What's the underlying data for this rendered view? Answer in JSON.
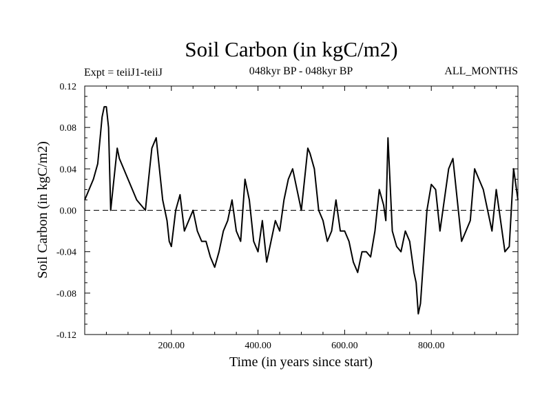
{
  "chart_data": {
    "type": "line",
    "title": "Soil Carbon (in kgC/m2)",
    "subtitle_left": "Expt = teiiJ1-teiiJ",
    "subtitle_center": "048kyr BP - 048kyr BP",
    "subtitle_right": "ALL_MONTHS",
    "xlabel": "Time (in years since start)",
    "ylabel": "Soil Carbon (in kgC/m2)",
    "xlim": [
      0,
      1000
    ],
    "ylim": [
      -0.12,
      0.12
    ],
    "xticks": [
      200,
      400,
      600,
      800
    ],
    "xtick_labels": [
      "200.00",
      "400.00",
      "600.00",
      "800.00"
    ],
    "yticks": [
      0.12,
      0.08,
      0.04,
      0.0,
      -0.04,
      -0.08,
      -0.12
    ],
    "ytick_labels": [
      "0.12",
      "0.08",
      "0.04",
      "0.00",
      "-0.04",
      "-0.08",
      "-0.12"
    ],
    "zero_line": "dashed",
    "grid": false,
    "series": [
      {
        "x": [
          0,
          10,
          20,
          30,
          40,
          45,
          50,
          55,
          60,
          70,
          75,
          80,
          90,
          100,
          110,
          120,
          130,
          140,
          150,
          155,
          160,
          165,
          170,
          180,
          190,
          195,
          200,
          210,
          220,
          230,
          240,
          250,
          260,
          270,
          280,
          290,
          300,
          310,
          320,
          330,
          340,
          350,
          360,
          370,
          380,
          390,
          400,
          410,
          420,
          430,
          440,
          450,
          460,
          470,
          480,
          490,
          500,
          510,
          515,
          520,
          530,
          540,
          550,
          560,
          570,
          580,
          590,
          600,
          610,
          620,
          630,
          640,
          650,
          660,
          670,
          680,
          690,
          695,
          700,
          710,
          720,
          730,
          740,
          750,
          760,
          765,
          770,
          775,
          780,
          790,
          800,
          810,
          820,
          830,
          840,
          850,
          860,
          870,
          880,
          890,
          900,
          910,
          920,
          930,
          940,
          950,
          960,
          970,
          980,
          990,
          1000
        ],
        "y": [
          0.01,
          0.02,
          0.03,
          0.045,
          0.09,
          0.1,
          0.1,
          0.08,
          0.0,
          0.04,
          0.06,
          0.05,
          0.04,
          0.03,
          0.02,
          0.01,
          0.005,
          0.0,
          0.04,
          0.06,
          0.065,
          0.07,
          0.05,
          0.01,
          -0.01,
          -0.03,
          -0.035,
          0.0,
          0.015,
          -0.02,
          -0.01,
          0.0,
          -0.02,
          -0.03,
          -0.03,
          -0.045,
          -0.055,
          -0.04,
          -0.02,
          -0.01,
          0.01,
          -0.02,
          -0.03,
          0.03,
          0.01,
          -0.03,
          -0.04,
          -0.01,
          -0.05,
          -0.03,
          -0.01,
          -0.02,
          0.01,
          0.03,
          0.04,
          0.02,
          0.0,
          0.04,
          0.06,
          0.055,
          0.04,
          0.0,
          -0.01,
          -0.03,
          -0.02,
          0.01,
          -0.02,
          -0.02,
          -0.03,
          -0.05,
          -0.06,
          -0.04,
          -0.04,
          -0.045,
          -0.02,
          0.02,
          0.005,
          -0.01,
          0.07,
          -0.02,
          -0.035,
          -0.04,
          -0.02,
          -0.03,
          -0.06,
          -0.07,
          -0.1,
          -0.09,
          -0.06,
          0.0,
          0.025,
          0.02,
          -0.02,
          0.01,
          0.04,
          0.05,
          0.01,
          -0.03,
          -0.02,
          -0.01,
          0.04,
          0.03,
          0.02,
          0.0,
          -0.02,
          0.02,
          -0.01,
          -0.04,
          -0.035,
          0.04,
          0.01
        ]
      }
    ]
  }
}
